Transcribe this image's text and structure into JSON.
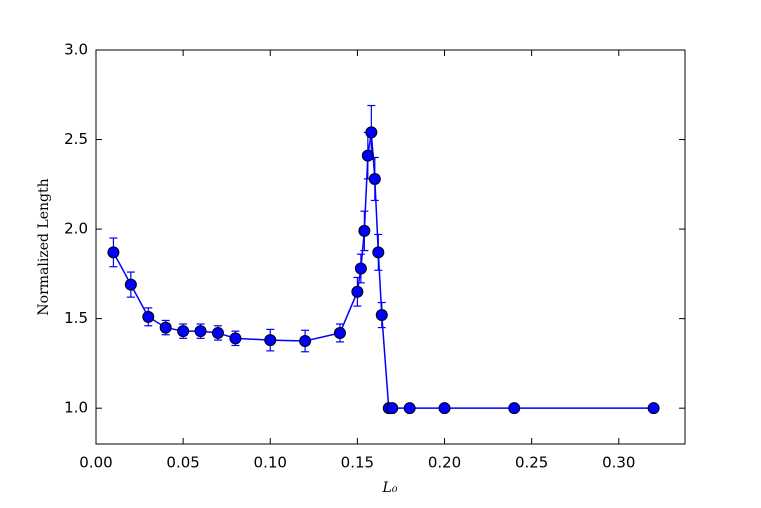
{
  "chart_data": {
    "type": "line",
    "x_label": "L₀",
    "y_label": "Normalized Length",
    "x": [
      0.01,
      0.02,
      0.03,
      0.04,
      0.05,
      0.06,
      0.07,
      0.08,
      0.1,
      0.12,
      0.14,
      0.15,
      0.152,
      0.154,
      0.156,
      0.158,
      0.16,
      0.162,
      0.164,
      0.168,
      0.17,
      0.18,
      0.2,
      0.24,
      0.32
    ],
    "values": [
      1.87,
      1.69,
      1.51,
      1.45,
      1.43,
      1.43,
      1.42,
      1.39,
      1.38,
      1.375,
      1.42,
      1.65,
      1.78,
      1.99,
      2.41,
      2.54,
      2.28,
      1.87,
      1.52,
      1.0,
      1.0,
      1.0,
      1.0,
      1.0,
      1.0
    ],
    "errors": [
      0.08,
      0.07,
      0.05,
      0.04,
      0.04,
      0.04,
      0.04,
      0.04,
      0.06,
      0.06,
      0.05,
      0.08,
      0.08,
      0.11,
      0.13,
      0.15,
      0.12,
      0.1,
      0.07,
      0.005,
      0.005,
      0.005,
      0.005,
      0.005,
      0.005
    ],
    "color": "#0000ff",
    "xlim": [
      0,
      0.338
    ],
    "ylim": [
      0.8,
      3.0
    ],
    "xticks": [
      {
        "value": 0,
        "label": "0.00"
      },
      0.05,
      {
        "value": 0.1,
        "label": "0.10"
      },
      0.15,
      {
        "value": 0.2,
        "label": "0.20"
      },
      0.25,
      {
        "value": 0.3,
        "label": "0.30"
      }
    ],
    "yticks": [
      {
        "value": 1,
        "label": "1.0"
      },
      1.5,
      {
        "value": 2,
        "label": "2.0"
      },
      2.5,
      {
        "value": 3,
        "label": "3.0"
      }
    ]
  }
}
